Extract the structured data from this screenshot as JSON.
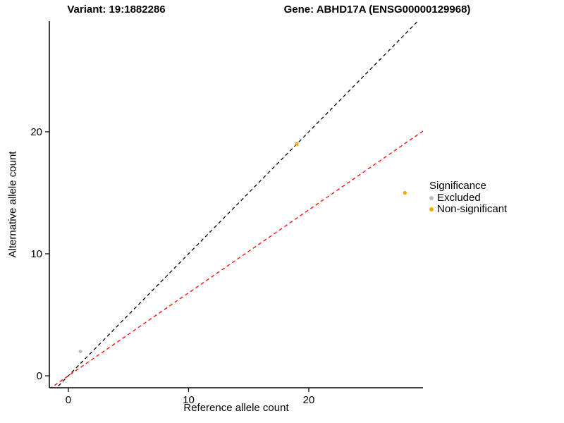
{
  "titles": {
    "variant": "Variant: 19:1882286",
    "gene": "Gene: ABHD17A (ENSG00000129968)"
  },
  "chart_data": {
    "type": "scatter",
    "title": "Variant: 19:1882286 / Gene: ABHD17A (ENSG00000129968)",
    "xlabel": "Reference allele count",
    "ylabel": "Alternative allele count",
    "xlim": [
      -1.58,
      29.5
    ],
    "ylim": [
      -0.98,
      29.07
    ],
    "x_ticks": [
      0,
      10,
      20
    ],
    "y_ticks": [
      0,
      10,
      20
    ],
    "grid": false,
    "points": [
      {
        "x": 1,
        "y": 2,
        "group": "Excluded"
      },
      {
        "x": 19,
        "y": 19,
        "group": "Non-significant"
      },
      {
        "x": 28,
        "y": 15,
        "group": "Non-significant"
      }
    ],
    "lines": [
      {
        "name": "identity-line",
        "slope": 1,
        "intercept": 0,
        "color": "#000000",
        "dash": "5,4"
      },
      {
        "name": "expected-ratio-line",
        "slope": 0.68,
        "intercept": 0,
        "color": "#FF0000",
        "dash": "5,4"
      }
    ],
    "legend": {
      "title": "Significance",
      "position": "right",
      "items": [
        {
          "label": "Excluded",
          "color": "#BEBEBE"
        },
        {
          "label": "Non-significant",
          "color": "#FFA500"
        }
      ]
    }
  }
}
